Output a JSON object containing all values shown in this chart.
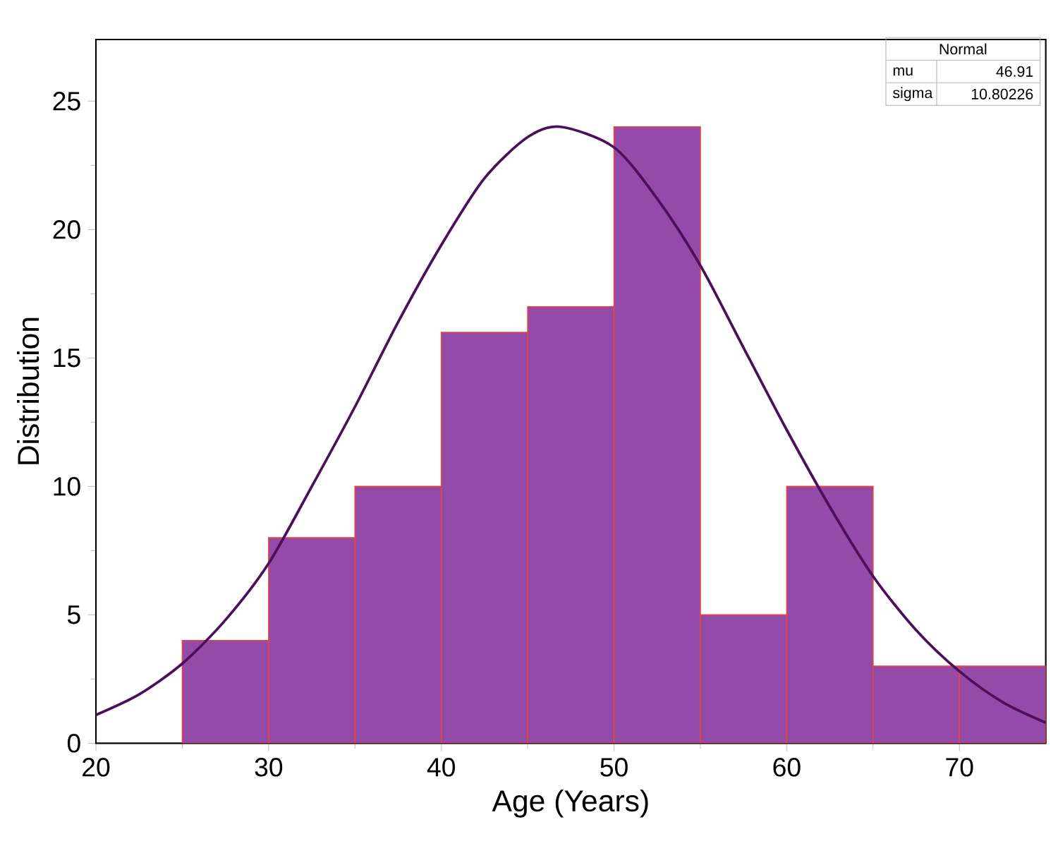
{
  "chart_data": {
    "type": "histogram",
    "xlabel": "Age (Years)",
    "ylabel": "Distribution",
    "bins": [
      25,
      30,
      35,
      40,
      45,
      50,
      55,
      60,
      65,
      70,
      75
    ],
    "series": [
      {
        "color": "#944aa8",
        "values": [
          4,
          8,
          10,
          16,
          17,
          24,
          5,
          10,
          3,
          3
        ]
      },
      {
        "type": "line",
        "color": "#4b0f5c",
        "x": [
          20,
          22.5,
          25,
          27.5,
          30,
          32.5,
          35,
          37.5,
          40,
          42.5,
          45,
          46.91,
          50,
          52.5,
          55,
          57.5,
          60,
          62.5,
          65,
          67.5,
          70,
          72.5,
          75
        ],
        "values": [
          1.1,
          1.9,
          3.1,
          4.8,
          7.0,
          10.0,
          13.1,
          16.4,
          19.4,
          22.0,
          23.6,
          24.0,
          23.2,
          21.2,
          18.6,
          15.4,
          12.2,
          9.2,
          6.5,
          4.4,
          2.8,
          1.6,
          0.8
        ]
      }
    ],
    "xlim": [
      20,
      75
    ],
    "ylim": [
      0,
      27.4
    ],
    "xticks": [
      20,
      30,
      40,
      50,
      60,
      70
    ],
    "yticks": [
      0,
      5,
      10,
      15,
      20,
      25
    ],
    "grid": false,
    "annotations": [
      "Normal",
      "mu",
      "46.91",
      "sigma",
      "10.80226"
    ]
  }
}
